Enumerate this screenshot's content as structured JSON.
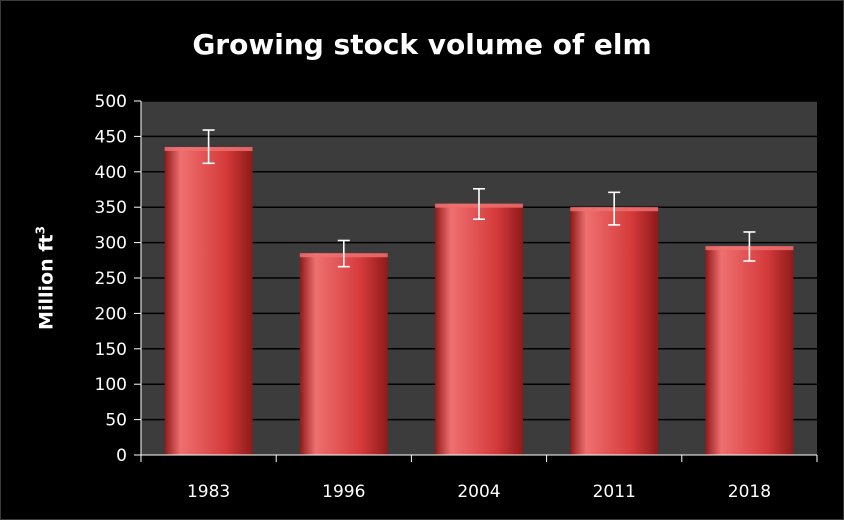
{
  "chart_data": {
    "type": "bar",
    "title": "Growing stock volume of elm",
    "ylabel": "Million ft",
    "ylabel_superscript": "3",
    "xlabel": "",
    "categories": [
      "1983",
      "1996",
      "2004",
      "2011",
      "2018"
    ],
    "values": [
      435,
      285,
      355,
      350,
      295
    ],
    "error_bars": [
      {
        "low": 412,
        "high": 459
      },
      {
        "low": 266,
        "high": 303
      },
      {
        "low": 333,
        "high": 376
      },
      {
        "low": 325,
        "high": 371
      },
      {
        "low": 274,
        "high": 315
      }
    ],
    "ylim": [
      0,
      500
    ],
    "yticks": [
      0,
      50,
      100,
      150,
      200,
      250,
      300,
      350,
      400,
      450,
      500
    ],
    "grid": true,
    "legend": "none",
    "colors": {
      "background": "#000000",
      "plot_area": "#3c3c3c",
      "bar": "#d53a3a",
      "bar_highlight": "#ef7070",
      "bar_shadow": "#8e1a1a",
      "gridline": "#000000",
      "axis_text": "#ffffff",
      "error_bar": "#ffffff"
    }
  }
}
